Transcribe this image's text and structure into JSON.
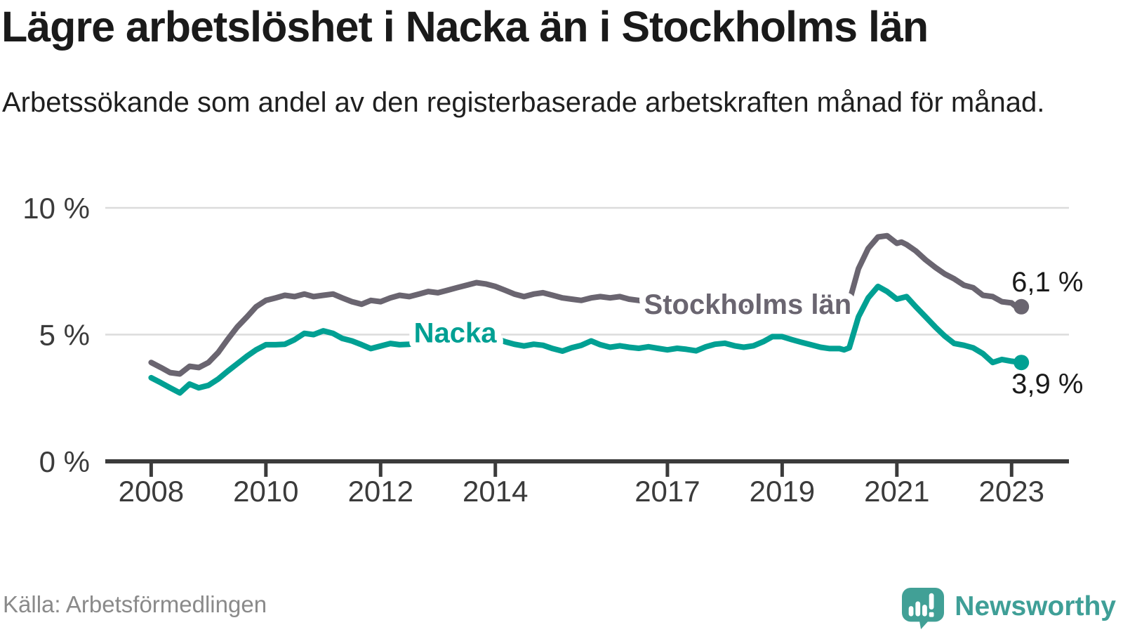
{
  "header": {
    "title": "Lägre arbetslöshet i Nacka än i Stockholms län",
    "subtitle": "Arbetssökande som andel av den registerbaserade arbetskraften månad för månad."
  },
  "footer": {
    "source": "Källa: Arbetsförmedlingen",
    "brand_name": "Newsworthy",
    "brand_icon": "bar-chart-speech-bubble-icon",
    "brand_color": "#41a096"
  },
  "colors": {
    "background": "#ffffff",
    "title_text": "#1a1a1a",
    "axis_text": "#3b3b3b",
    "axis_line": "#3b3b3b",
    "gridline": "#dcdcdc",
    "value_label_text": "#1a1a1a",
    "source_text": "#8a8a8a"
  },
  "chart_data": {
    "type": "line",
    "x_resolution": "monthly",
    "xlim": [
      2007.2,
      2024.0
    ],
    "ylim": [
      0,
      10
    ],
    "grid": "horizontal",
    "legend": "inline-labels",
    "y_ticks": [
      {
        "value": 10,
        "label": "10 %"
      },
      {
        "value": 5,
        "label": "5 %"
      },
      {
        "value": 0,
        "label": "0 %"
      }
    ],
    "x_ticks": [
      {
        "value": 2008,
        "label": "2008"
      },
      {
        "value": 2010,
        "label": "2010"
      },
      {
        "value": 2012,
        "label": "2012"
      },
      {
        "value": 2014,
        "label": "2014"
      },
      {
        "value": 2017,
        "label": "2017"
      },
      {
        "value": 2019,
        "label": "2019"
      },
      {
        "value": 2021,
        "label": "2021"
      },
      {
        "value": 2023,
        "label": "2023"
      }
    ],
    "series": [
      {
        "name": "Stockholms län",
        "color": "#6a6570",
        "end_value": 6.1,
        "end_value_label": "6,1 %",
        "inline_label": {
          "x": 2018.4,
          "y": 5.82
        },
        "end_label_offset": {
          "dx": -14,
          "dy": -22
        },
        "points": [
          [
            2008.0,
            3.9
          ],
          [
            2008.17,
            3.7
          ],
          [
            2008.33,
            3.5
          ],
          [
            2008.5,
            3.45
          ],
          [
            2008.67,
            3.75
          ],
          [
            2008.83,
            3.7
          ],
          [
            2009.0,
            3.9
          ],
          [
            2009.17,
            4.3
          ],
          [
            2009.33,
            4.8
          ],
          [
            2009.5,
            5.3
          ],
          [
            2009.67,
            5.7
          ],
          [
            2009.83,
            6.1
          ],
          [
            2010.0,
            6.35
          ],
          [
            2010.17,
            6.45
          ],
          [
            2010.33,
            6.55
          ],
          [
            2010.5,
            6.5
          ],
          [
            2010.67,
            6.6
          ],
          [
            2010.83,
            6.5
          ],
          [
            2011.0,
            6.55
          ],
          [
            2011.17,
            6.6
          ],
          [
            2011.33,
            6.45
          ],
          [
            2011.5,
            6.3
          ],
          [
            2011.67,
            6.2
          ],
          [
            2011.83,
            6.35
          ],
          [
            2012.0,
            6.3
          ],
          [
            2012.17,
            6.45
          ],
          [
            2012.33,
            6.55
          ],
          [
            2012.5,
            6.5
          ],
          [
            2012.67,
            6.6
          ],
          [
            2012.83,
            6.7
          ],
          [
            2013.0,
            6.65
          ],
          [
            2013.17,
            6.75
          ],
          [
            2013.33,
            6.85
          ],
          [
            2013.5,
            6.95
          ],
          [
            2013.67,
            7.05
          ],
          [
            2013.83,
            7.0
          ],
          [
            2014.0,
            6.9
          ],
          [
            2014.17,
            6.75
          ],
          [
            2014.33,
            6.6
          ],
          [
            2014.5,
            6.5
          ],
          [
            2014.67,
            6.6
          ],
          [
            2014.83,
            6.65
          ],
          [
            2015.0,
            6.55
          ],
          [
            2015.17,
            6.45
          ],
          [
            2015.33,
            6.4
          ],
          [
            2015.5,
            6.35
          ],
          [
            2015.67,
            6.45
          ],
          [
            2015.83,
            6.5
          ],
          [
            2016.0,
            6.45
          ],
          [
            2016.17,
            6.5
          ],
          [
            2016.33,
            6.4
          ],
          [
            2016.5,
            6.35
          ],
          [
            2016.67,
            6.3
          ],
          [
            2016.83,
            6.3
          ],
          [
            2017.0,
            6.25
          ],
          [
            2017.17,
            6.3
          ],
          [
            2017.33,
            6.25
          ],
          [
            2017.5,
            6.2
          ],
          [
            2017.67,
            6.25
          ],
          [
            2017.83,
            6.2
          ],
          [
            2018.0,
            6.15
          ],
          [
            2018.17,
            6.1
          ],
          [
            2018.33,
            6.05
          ],
          [
            2018.5,
            6.0
          ],
          [
            2018.67,
            6.05
          ],
          [
            2018.83,
            6.1
          ],
          [
            2019.0,
            6.1
          ],
          [
            2019.17,
            6.05
          ],
          [
            2019.33,
            6.0
          ],
          [
            2019.5,
            6.05
          ],
          [
            2019.67,
            6.1
          ],
          [
            2019.83,
            6.15
          ],
          [
            2020.0,
            6.2
          ],
          [
            2020.17,
            6.3
          ],
          [
            2020.33,
            7.6
          ],
          [
            2020.5,
            8.4
          ],
          [
            2020.67,
            8.85
          ],
          [
            2020.83,
            8.9
          ],
          [
            2021.0,
            8.6
          ],
          [
            2021.08,
            8.65
          ],
          [
            2021.17,
            8.55
          ],
          [
            2021.33,
            8.3
          ],
          [
            2021.5,
            7.95
          ],
          [
            2021.67,
            7.65
          ],
          [
            2021.83,
            7.4
          ],
          [
            2022.0,
            7.2
          ],
          [
            2022.17,
            6.95
          ],
          [
            2022.33,
            6.85
          ],
          [
            2022.5,
            6.55
          ],
          [
            2022.67,
            6.5
          ],
          [
            2022.83,
            6.3
          ],
          [
            2023.0,
            6.25
          ],
          [
            2023.08,
            6.1
          ],
          [
            2023.17,
            6.1
          ]
        ]
      },
      {
        "name": "Nacka",
        "color": "#00a093",
        "end_value": 3.9,
        "end_value_label": "3,9 %",
        "inline_label": {
          "x": 2013.3,
          "y": 4.7
        },
        "end_label_offset": {
          "dx": -14,
          "dy": 44
        },
        "points": [
          [
            2008.0,
            3.3
          ],
          [
            2008.17,
            3.1
          ],
          [
            2008.33,
            2.9
          ],
          [
            2008.5,
            2.7
          ],
          [
            2008.67,
            3.05
          ],
          [
            2008.83,
            2.9
          ],
          [
            2009.0,
            3.0
          ],
          [
            2009.17,
            3.25
          ],
          [
            2009.33,
            3.55
          ],
          [
            2009.5,
            3.85
          ],
          [
            2009.67,
            4.15
          ],
          [
            2009.83,
            4.4
          ],
          [
            2010.0,
            4.6
          ],
          [
            2010.17,
            4.6
          ],
          [
            2010.33,
            4.62
          ],
          [
            2010.5,
            4.8
          ],
          [
            2010.67,
            5.05
          ],
          [
            2010.83,
            5.0
          ],
          [
            2011.0,
            5.15
          ],
          [
            2011.17,
            5.05
          ],
          [
            2011.33,
            4.85
          ],
          [
            2011.5,
            4.75
          ],
          [
            2011.67,
            4.6
          ],
          [
            2011.83,
            4.45
          ],
          [
            2012.0,
            4.55
          ],
          [
            2012.17,
            4.65
          ],
          [
            2012.33,
            4.6
          ],
          [
            2012.5,
            4.62
          ],
          [
            2012.67,
            4.68
          ],
          [
            2012.83,
            4.72
          ],
          [
            2013.0,
            4.66
          ],
          [
            2013.17,
            4.72
          ],
          [
            2013.33,
            4.78
          ],
          [
            2013.5,
            4.72
          ],
          [
            2013.67,
            4.78
          ],
          [
            2013.83,
            4.82
          ],
          [
            2014.0,
            4.85
          ],
          [
            2014.17,
            4.72
          ],
          [
            2014.33,
            4.62
          ],
          [
            2014.5,
            4.55
          ],
          [
            2014.67,
            4.62
          ],
          [
            2014.83,
            4.58
          ],
          [
            2015.0,
            4.45
          ],
          [
            2015.17,
            4.35
          ],
          [
            2015.33,
            4.48
          ],
          [
            2015.5,
            4.58
          ],
          [
            2015.67,
            4.75
          ],
          [
            2015.83,
            4.6
          ],
          [
            2016.0,
            4.5
          ],
          [
            2016.17,
            4.56
          ],
          [
            2016.33,
            4.5
          ],
          [
            2016.5,
            4.46
          ],
          [
            2016.67,
            4.52
          ],
          [
            2016.83,
            4.46
          ],
          [
            2017.0,
            4.4
          ],
          [
            2017.17,
            4.46
          ],
          [
            2017.33,
            4.42
          ],
          [
            2017.5,
            4.36
          ],
          [
            2017.67,
            4.52
          ],
          [
            2017.83,
            4.62
          ],
          [
            2018.0,
            4.66
          ],
          [
            2018.17,
            4.56
          ],
          [
            2018.33,
            4.5
          ],
          [
            2018.5,
            4.56
          ],
          [
            2018.67,
            4.72
          ],
          [
            2018.83,
            4.92
          ],
          [
            2019.0,
            4.92
          ],
          [
            2019.17,
            4.8
          ],
          [
            2019.33,
            4.7
          ],
          [
            2019.5,
            4.6
          ],
          [
            2019.67,
            4.5
          ],
          [
            2019.83,
            4.45
          ],
          [
            2020.0,
            4.45
          ],
          [
            2020.08,
            4.4
          ],
          [
            2020.17,
            4.48
          ],
          [
            2020.33,
            5.7
          ],
          [
            2020.5,
            6.45
          ],
          [
            2020.67,
            6.9
          ],
          [
            2020.83,
            6.7
          ],
          [
            2021.0,
            6.4
          ],
          [
            2021.17,
            6.5
          ],
          [
            2021.33,
            6.1
          ],
          [
            2021.5,
            5.7
          ],
          [
            2021.67,
            5.3
          ],
          [
            2021.83,
            4.95
          ],
          [
            2022.0,
            4.65
          ],
          [
            2022.17,
            4.58
          ],
          [
            2022.33,
            4.48
          ],
          [
            2022.5,
            4.25
          ],
          [
            2022.67,
            3.9
          ],
          [
            2022.83,
            4.02
          ],
          [
            2023.0,
            3.95
          ],
          [
            2023.17,
            3.9
          ]
        ]
      }
    ]
  }
}
